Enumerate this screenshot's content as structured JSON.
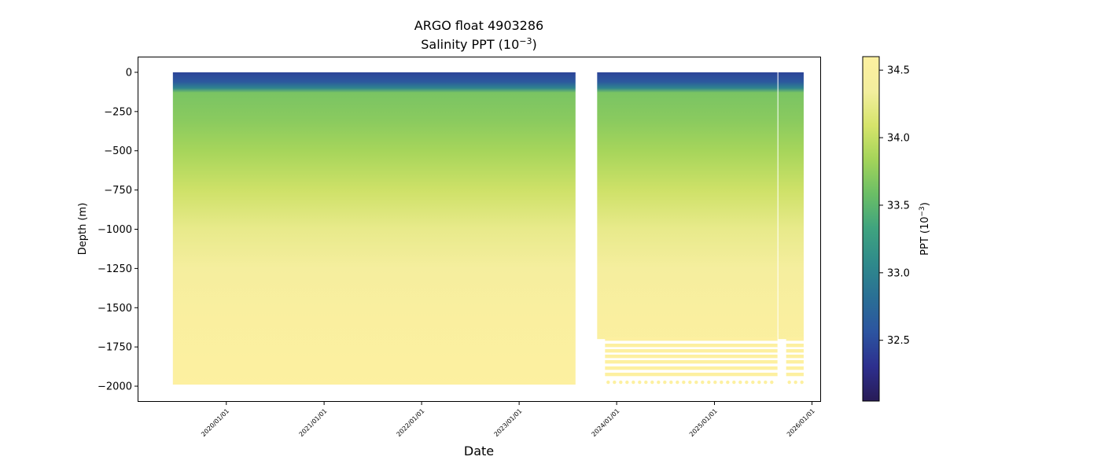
{
  "chart_data": {
    "type": "heatmap",
    "title_line1": "ARGO float 4903286",
    "title_line2": "Salinity PPT (10",
    "title_line2_sup": "−3",
    "title_line2_end": ")",
    "xlabel": "Date",
    "ylabel": "Depth (m)",
    "x_tick_labels": [
      "2020/01/01",
      "2021/01/01",
      "2022/01/01",
      "2023/01/01",
      "2024/01/01",
      "2025/01/01",
      "2026/01/01"
    ],
    "y_ticks": [
      0,
      -250,
      -500,
      -750,
      -1000,
      -1250,
      -1500,
      -1750,
      -2000
    ],
    "y_tick_labels": [
      "0",
      "−250",
      "−500",
      "−750",
      "−1000",
      "−1250",
      "−1500",
      "−1750",
      "−2000"
    ],
    "xlim": [
      "2019/02/06",
      "2026/02/01"
    ],
    "ylim": [
      -2095,
      95
    ],
    "segments": [
      {
        "start": "2019/06/15",
        "end": "2023/07/31",
        "max_depth": -1990
      },
      {
        "start": "2023/10/20",
        "end": "2025/08/25",
        "max_depth": -1700
      },
      {
        "start": "2025/08/28",
        "end": "2025/12/01",
        "max_depth": -1700
      }
    ],
    "sparse_deep_levels": [
      -1700,
      -1740,
      -1775,
      -1810,
      -1845,
      -1885,
      -1925,
      -1975
    ],
    "profile": [
      {
        "depth": 0,
        "value": 32.45
      },
      {
        "depth": -60,
        "value": 32.6
      },
      {
        "depth": -100,
        "value": 33.0
      },
      {
        "depth": -130,
        "value": 33.65
      },
      {
        "depth": -300,
        "value": 33.72
      },
      {
        "depth": -500,
        "value": 33.85
      },
      {
        "depth": -750,
        "value": 34.05
      },
      {
        "depth": -1000,
        "value": 34.25
      },
      {
        "depth": -1250,
        "value": 34.4
      },
      {
        "depth": -1500,
        "value": 34.5
      },
      {
        "depth": -2000,
        "value": 34.6
      }
    ],
    "colorbar": {
      "label": "PPT (10",
      "label_sup": "−3",
      "label_end": ")",
      "range": [
        32.05,
        34.6
      ],
      "ticks": [
        32.5,
        33.0,
        33.5,
        34.0,
        34.5
      ],
      "tick_labels": [
        "32.5",
        "33.0",
        "33.5",
        "34.0",
        "34.5"
      ],
      "colormap": [
        "#281b56",
        "#2d2f8e",
        "#2c54a0",
        "#2a6f95",
        "#2f8a8b",
        "#3fa37f",
        "#6abe66",
        "#a3d45a",
        "#d6e46b",
        "#f3ee9e",
        "#fdf0a0"
      ]
    }
  }
}
